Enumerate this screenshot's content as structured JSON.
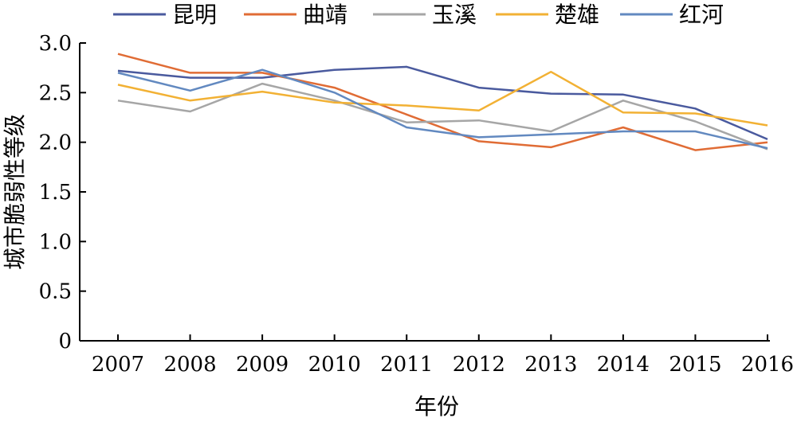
{
  "chart_data": {
    "type": "line",
    "title": "",
    "xlabel": "年份",
    "ylabel": "城市脆弱性等级",
    "x": [
      "2007",
      "2008",
      "2009",
      "2010",
      "2011",
      "2012",
      "2013",
      "2014",
      "2015",
      "2016"
    ],
    "ylim": [
      0,
      3.0
    ],
    "yticks": [
      "0",
      "0.5",
      "1.0",
      "1.5",
      "2.0",
      "2.5",
      "3.0"
    ],
    "grid": false,
    "legend_position": "top",
    "series": [
      {
        "name": "昆明",
        "color": "#4a5a9e",
        "values": [
          2.72,
          2.65,
          2.65,
          2.73,
          2.76,
          2.55,
          2.49,
          2.48,
          2.34,
          2.03
        ]
      },
      {
        "name": "曲靖",
        "color": "#e06c35",
        "values": [
          2.89,
          2.7,
          2.7,
          2.55,
          2.28,
          2.01,
          1.95,
          2.15,
          1.92,
          2.0
        ]
      },
      {
        "name": "玉溪",
        "color": "#a6a6a6",
        "values": [
          2.42,
          2.31,
          2.59,
          2.42,
          2.2,
          2.22,
          2.11,
          2.42,
          2.21,
          1.93
        ]
      },
      {
        "name": "楚雄",
        "color": "#f2b134",
        "values": [
          2.58,
          2.42,
          2.51,
          2.4,
          2.37,
          2.32,
          2.71,
          2.3,
          2.29,
          2.17
        ]
      },
      {
        "name": "红河",
        "color": "#6289c0",
        "values": [
          2.7,
          2.52,
          2.73,
          2.5,
          2.15,
          2.05,
          2.08,
          2.11,
          2.11,
          1.94
        ]
      }
    ]
  }
}
